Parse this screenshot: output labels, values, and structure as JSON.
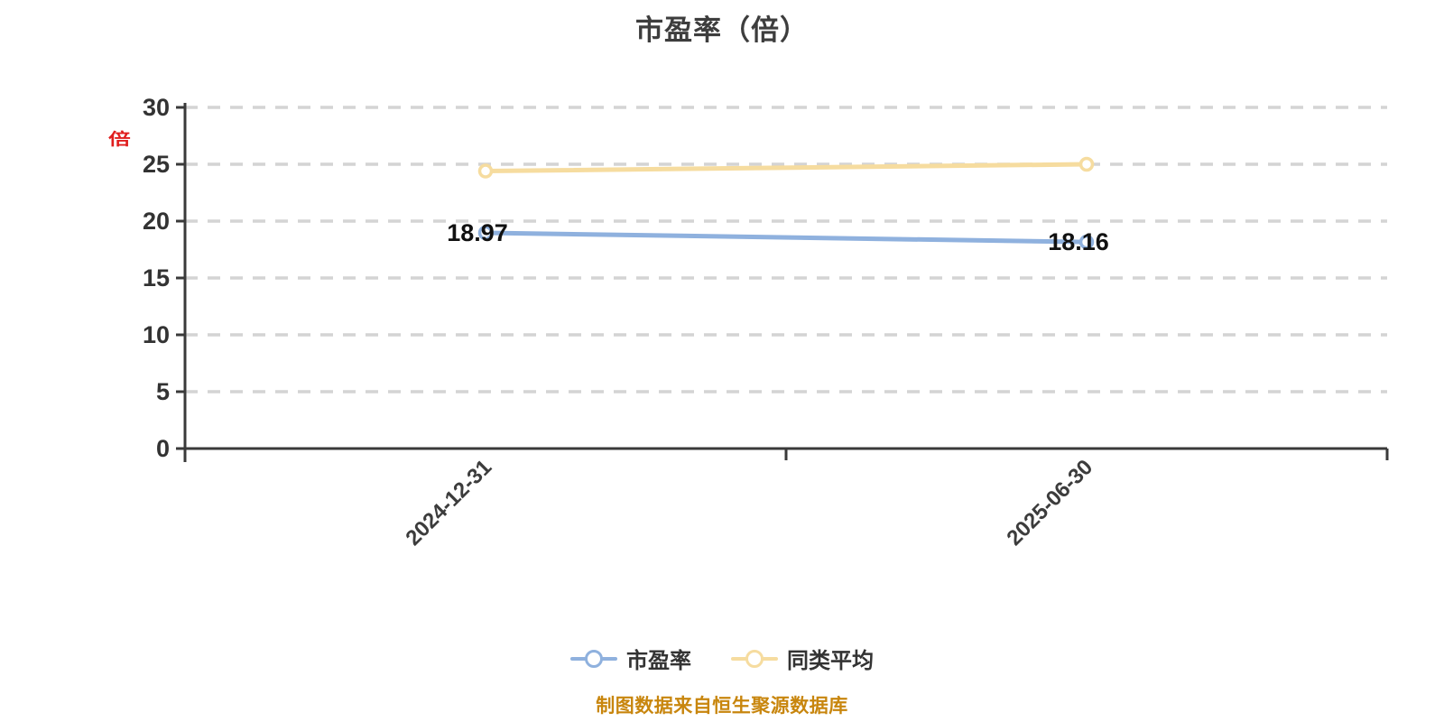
{
  "title": "市盈率（倍）",
  "y_axis_unit": "倍",
  "caption": "制图数据来自恒生聚源数据库",
  "colors": {
    "grid": "#d4d4d4",
    "axis": "#3a3a3a",
    "y_tick_label": "#333333",
    "x_tick_label": "#3c3c3c",
    "data_label": "#111111",
    "title": "#3d3d3d",
    "caption": "#c8860e",
    "unit": "#e01e1e",
    "marker_fill": "#ffffff"
  },
  "legend": {
    "items": [
      {
        "label": "市盈率",
        "color": "#8fb1de"
      },
      {
        "label": "同类平均",
        "color": "#f6dc9f"
      }
    ]
  },
  "chart_data": {
    "type": "line",
    "title": "市盈率（倍）",
    "xlabel": "",
    "ylabel": "倍",
    "categories": [
      "2024-12-31",
      "2025-06-30"
    ],
    "series": [
      {
        "name": "市盈率",
        "values": [
          18.97,
          18.16
        ],
        "labels": [
          "18.97",
          "18.16"
        ],
        "show_labels": true,
        "color": "#8fb1de"
      },
      {
        "name": "同类平均",
        "values": [
          24.4,
          25.0
        ],
        "labels": [
          "24.4",
          "25.0"
        ],
        "show_labels": false,
        "color": "#f6dc9f"
      }
    ],
    "ylim": [
      0,
      30
    ],
    "ytick_step": 5,
    "yticks": [
      0,
      5,
      10,
      15,
      20,
      25,
      30
    ],
    "grid": "horizontal-dashed",
    "legend_position": "bottom",
    "x_label_rotation": 45
  }
}
